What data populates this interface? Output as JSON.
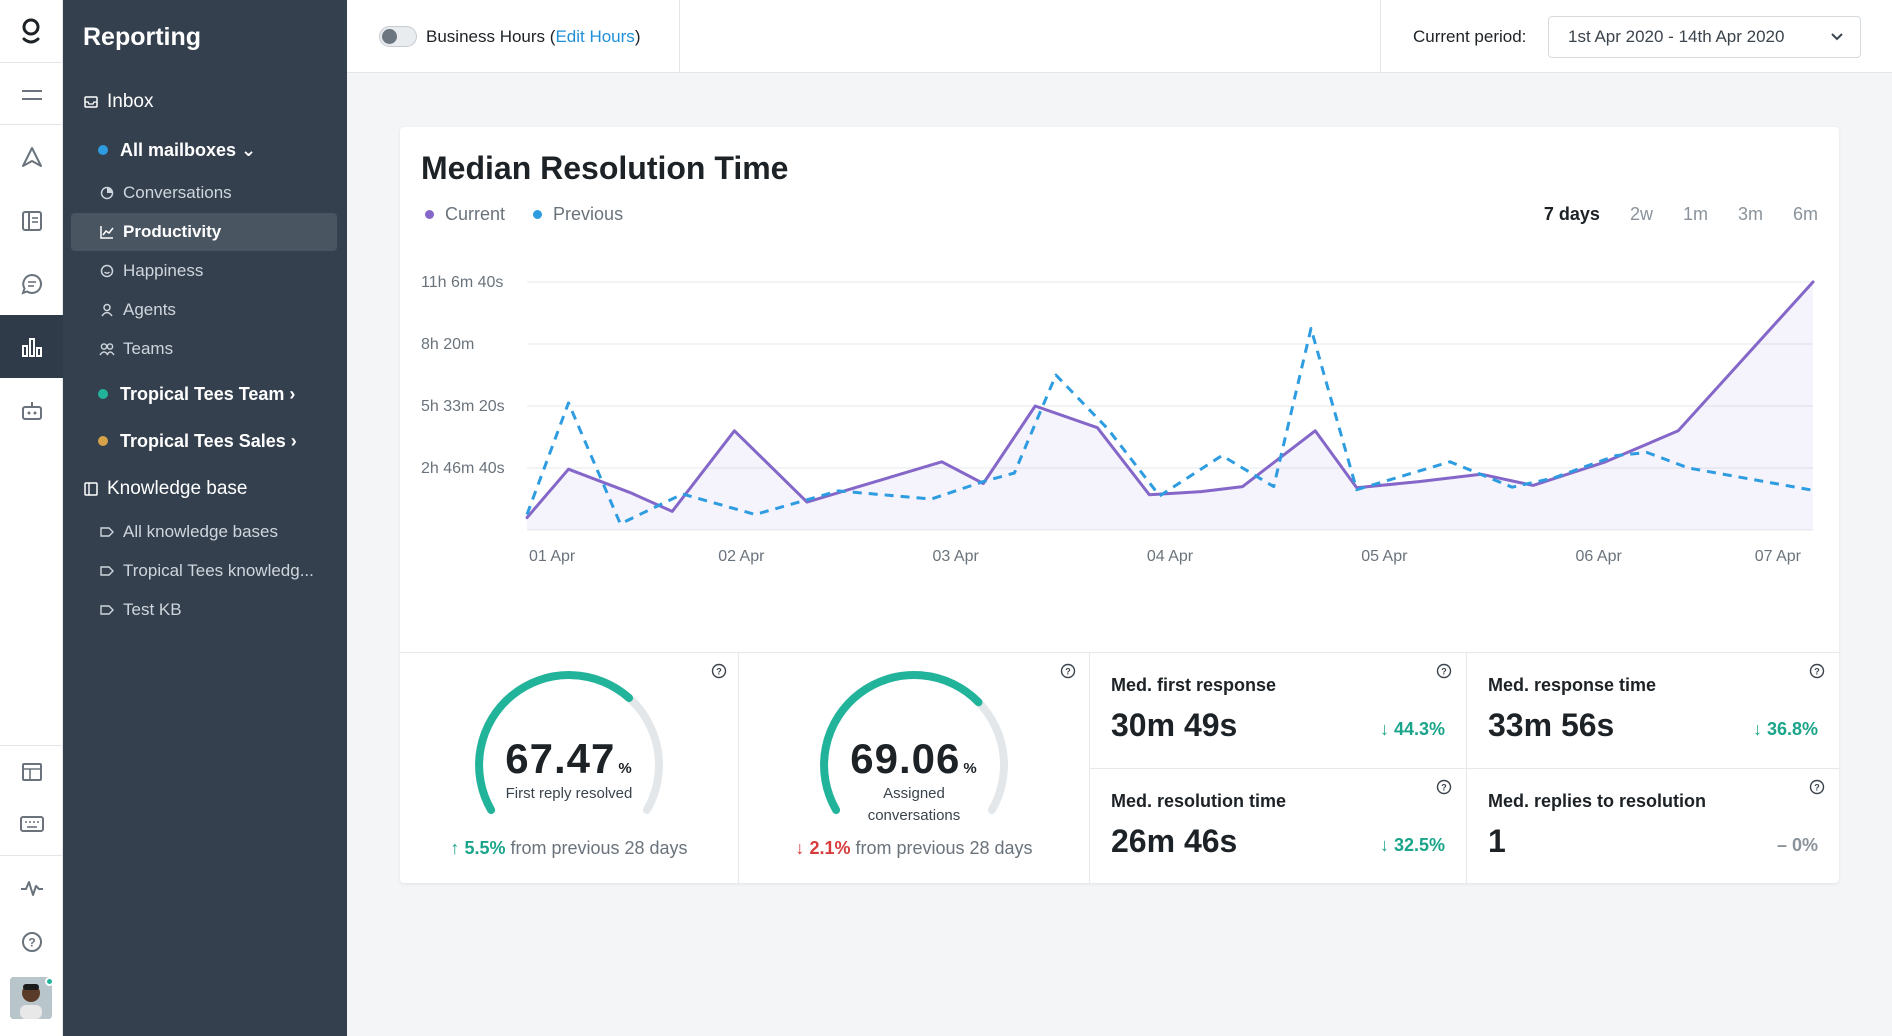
{
  "sidebar": {
    "title": "Reporting",
    "inbox_label": "Inbox",
    "all_mailboxes": "All mailboxes ⌄",
    "items": [
      "Conversations",
      "Productivity",
      "Happiness",
      "Agents",
      "Teams"
    ],
    "team1": "Tropical Tees Team ›",
    "team2": "Tropical Tees Sales ›",
    "kb_label": "Knowledge base",
    "kb_items": [
      "All knowledge bases",
      "Tropical Tees knowledg...",
      "Test KB"
    ]
  },
  "topbar": {
    "business_hours": "Business Hours (",
    "edit_hours": "Edit Hours",
    "close_paren": ")",
    "period_label": "Current period:",
    "period_value": "1st Apr 2020  -  14th Apr 2020"
  },
  "chart": {
    "title": "Median Resolution Time",
    "ranges": [
      "7 days",
      "2w",
      "1m",
      "3m",
      "6m"
    ],
    "current_range": "7 days"
  },
  "chart_data": {
    "type": "line",
    "title": "Median Resolution Time",
    "x_labels": [
      "01 Apr",
      "02 Apr",
      "03 Apr",
      "04 Apr",
      "05 Apr",
      "06 Apr",
      "07 Apr"
    ],
    "y_ticks": [
      "2h 46m 40s",
      "5h 33m 20s",
      "8h 20m",
      "11h 6m 40s"
    ],
    "y_tick_values": [
      10000,
      20000,
      30000,
      40000
    ],
    "ylim": [
      0,
      40000
    ],
    "x_range": [
      0,
      6.2
    ],
    "grid": true,
    "series": [
      {
        "name": "Current",
        "color": "#8467c8",
        "style": "solid",
        "fill": true,
        "points": [
          [
            0,
            2000
          ],
          [
            0.2,
            9800
          ],
          [
            0.5,
            6000
          ],
          [
            0.7,
            3000
          ],
          [
            1.0,
            16000
          ],
          [
            1.35,
            4500
          ],
          [
            1.6,
            7000
          ],
          [
            2.0,
            11000
          ],
          [
            2.2,
            7500
          ],
          [
            2.45,
            20000
          ],
          [
            2.75,
            16500
          ],
          [
            3.0,
            5700
          ],
          [
            3.25,
            6200
          ],
          [
            3.45,
            7000
          ],
          [
            3.8,
            16000
          ],
          [
            4.0,
            6800
          ],
          [
            4.3,
            7800
          ],
          [
            4.6,
            9000
          ],
          [
            4.85,
            7200
          ],
          [
            5.2,
            11000
          ],
          [
            5.55,
            16000
          ],
          [
            6.2,
            40000
          ]
        ]
      },
      {
        "name": "Previous",
        "color": "#2d9ce0",
        "style": "dashed",
        "fill": false,
        "points": [
          [
            0,
            2500
          ],
          [
            0.2,
            20500
          ],
          [
            0.45,
            1000
          ],
          [
            0.75,
            5800
          ],
          [
            1.1,
            2500
          ],
          [
            1.5,
            6300
          ],
          [
            1.95,
            5000
          ],
          [
            2.2,
            7800
          ],
          [
            2.35,
            9200
          ],
          [
            2.55,
            25000
          ],
          [
            2.8,
            16300
          ],
          [
            3.05,
            5500
          ],
          [
            3.35,
            12000
          ],
          [
            3.6,
            7000
          ],
          [
            3.78,
            32500
          ],
          [
            4.0,
            6500
          ],
          [
            4.45,
            11000
          ],
          [
            4.75,
            6900
          ],
          [
            4.95,
            8400
          ],
          [
            5.25,
            12000
          ],
          [
            5.4,
            12500
          ],
          [
            5.6,
            10000
          ],
          [
            6.2,
            6400
          ]
        ]
      }
    ]
  },
  "stats": {
    "gauge1": {
      "value": "67.47",
      "pct": "%",
      "label": "First reply resolved",
      "fraction": 0.6747,
      "arrow": "↑",
      "change": "5.5%",
      "suffix": " from previous 28 days"
    },
    "gauge2": {
      "value": "69.06",
      "pct": "%",
      "label1": "Assigned",
      "label2": "conversations",
      "fraction": 0.6906,
      "arrow": "↓",
      "change": "2.1%",
      "suffix": " from previous 28 days"
    },
    "metrics": [
      {
        "title": "Med. first response",
        "value": "30m 49s",
        "delta": "↓ 44.3%"
      },
      {
        "title": "Med. response time",
        "value": "33m 56s",
        "delta": "↓ 36.8%"
      },
      {
        "title": "Med. resolution time",
        "value": "26m 46s",
        "delta": "↓ 32.5%"
      },
      {
        "title": "Med. replies to resolution",
        "value": "1",
        "delta": "– 0%"
      }
    ]
  },
  "colors": {
    "accent": "#22b39b",
    "sidebar_bg": "#34404e",
    "current": "#8467c8",
    "previous": "#2d9ce0",
    "negative": "#d83b3b"
  }
}
